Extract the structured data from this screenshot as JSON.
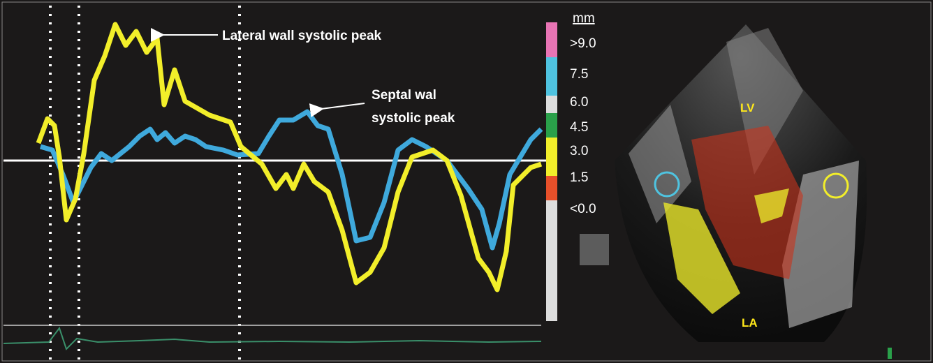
{
  "annotations": {
    "lateral": "Lateral wall systolic peak",
    "septal": [
      "Septal wal",
      "systolic peak"
    ]
  },
  "scale": {
    "unit": "mm",
    "labels": [
      ">9.0",
      "7.5",
      "6.0",
      "4.5",
      "3.0",
      "1.5",
      "<0.0"
    ]
  },
  "labels": {
    "lv": "LV",
    "la": "LA"
  }
}
